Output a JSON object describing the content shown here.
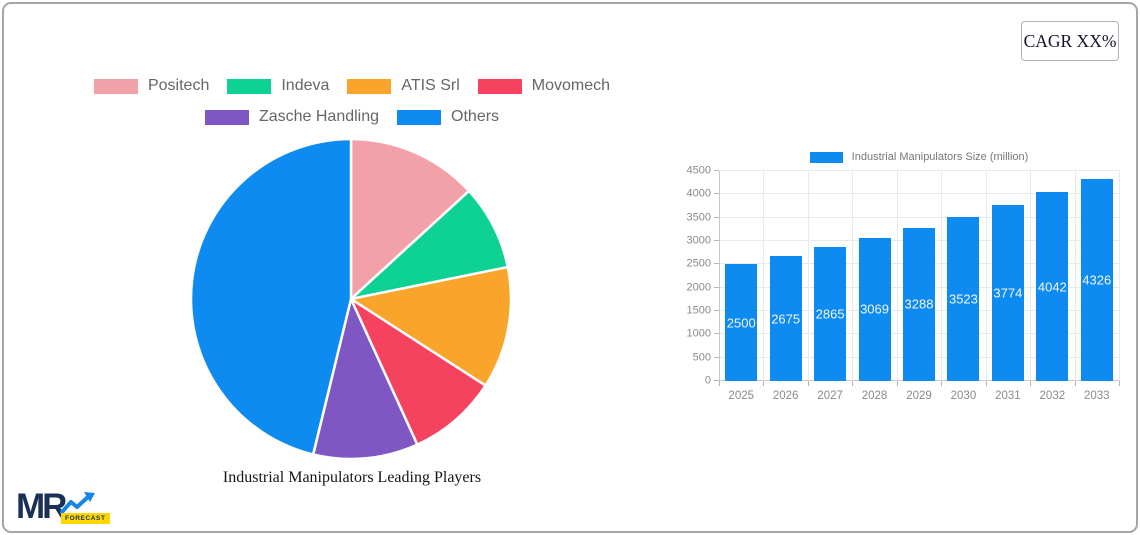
{
  "card": {
    "cagr_label": "CAGR XX%"
  },
  "logo": {
    "text": "MR",
    "badge_text": "FORECAST"
  },
  "colors": {
    "accent_blue": "#0E8BF1",
    "card_border": "#A5A5A5",
    "legend_text": "#666666",
    "axis_text": "#8A8A8A",
    "gridline": "#E9E9E9",
    "axis_line": "#C9C9C9",
    "bar_value_text": "#F2F6FA",
    "logo_navy": "#1B3055",
    "logo_blue": "#1586E8",
    "logo_yellow": "#FFD600"
  },
  "chart_data": [
    {
      "type": "pie",
      "title": "Industrial Manipulators Leading Players",
      "legend_position": "top",
      "slice_border_color": "#FFFFFF",
      "note": "slice values estimated from arc angles, percent of circle",
      "slices": [
        {
          "label": "Positech",
          "value": 13.2,
          "color": "#F3A1A8"
        },
        {
          "label": "Indeva",
          "value": 8.6,
          "color": "#0ED294"
        },
        {
          "label": "ATIS Srl",
          "value": 12.3,
          "color": "#F9A52B"
        },
        {
          "label": "Movomech",
          "value": 9.1,
          "color": "#F4425F"
        },
        {
          "label": "Zasche Handling",
          "value": 10.6,
          "color": "#7E57C2"
        },
        {
          "label": "Others",
          "value": 46.2,
          "color": "#0E8BF1"
        }
      ]
    },
    {
      "type": "bar",
      "series_label": "Industrial Manipulators Size (million)",
      "categories": [
        "2025",
        "2026",
        "2027",
        "2028",
        "2029",
        "2030",
        "2031",
        "2032",
        "2033"
      ],
      "values": [
        2500,
        2675,
        2865,
        3069,
        3288,
        3523,
        3774,
        4042,
        4326
      ],
      "bar_color": "#0E8BF1",
      "ylim": [
        0,
        4500
      ],
      "ytick_step": 500,
      "grid": true,
      "legend_position": "top",
      "data_labels": "inside-center"
    }
  ]
}
